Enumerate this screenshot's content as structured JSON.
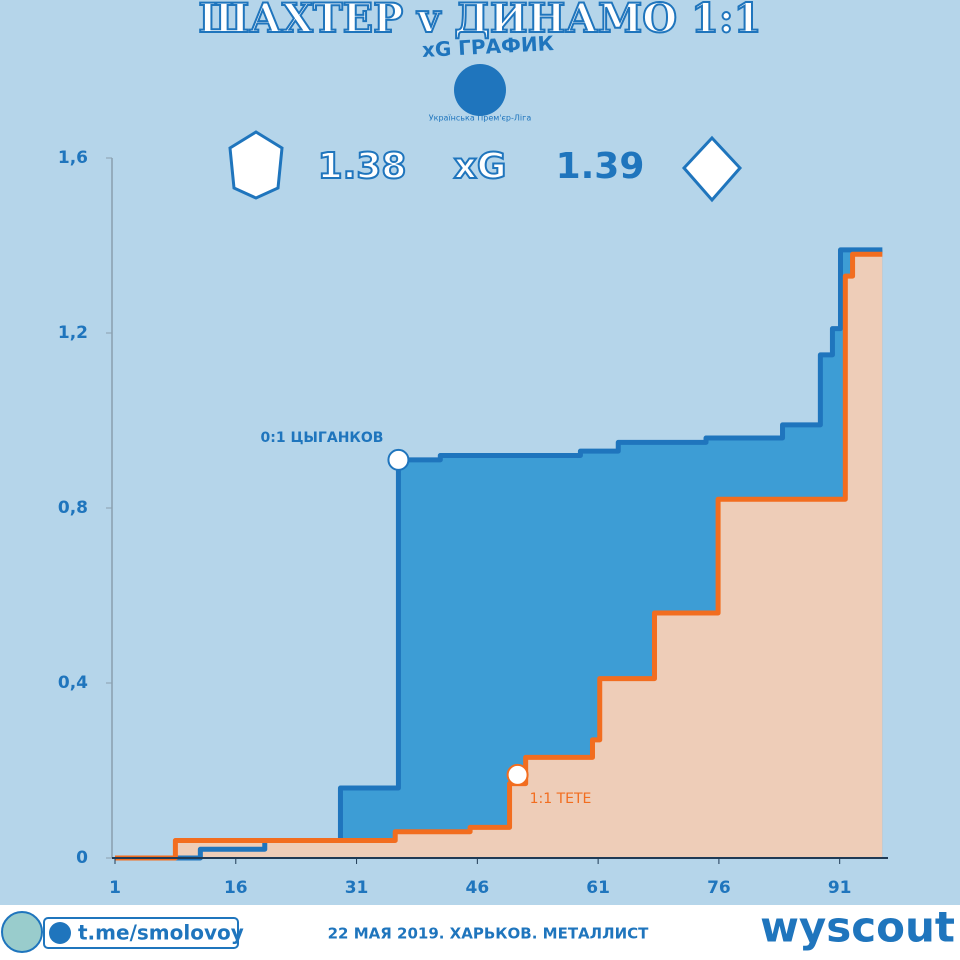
{
  "header": {
    "title": "ШАХТЕР v ДИНАМО 1:1",
    "subtitle": "xG ГРАФИК",
    "league": "Українська Прем'єр-Ліга",
    "home_xg": "1.38",
    "metric": "xG",
    "away_xg": "1.39"
  },
  "chart_data": {
    "type": "step",
    "xlim": [
      1,
      97
    ],
    "xticks": [
      1,
      16,
      31,
      46,
      61,
      76,
      91
    ],
    "ylim": [
      0,
      1.6
    ],
    "yticks": [
      0,
      {
        "value": 0.4,
        "label": "0,4"
      },
      {
        "value": 0.8,
        "label": "0,8"
      },
      {
        "value": 1.2,
        "label": "1,2"
      },
      {
        "value": 1.6,
        "label": "1,6"
      }
    ],
    "series": [
      {
        "name": "Динамо",
        "color": "#1f75bd",
        "fill": "#3d9dd5",
        "x": [
          1,
          11.6,
          19.6,
          29,
          36.2,
          41.4,
          58.8,
          63.5,
          74.4,
          83.9,
          88.6,
          90.1,
          91.1,
          96.3
        ],
        "values": [
          0,
          0.02,
          0.04,
          0.16,
          0.91,
          0.92,
          0.93,
          0.95,
          0.96,
          0.99,
          1.15,
          1.21,
          1.39,
          1.39
        ]
      },
      {
        "name": "Шахтер",
        "color": "#f26d1f",
        "fill": "#eecdb8",
        "x": [
          1,
          8.5,
          35.8,
          45.1,
          50,
          52,
          60.3,
          61.2,
          68,
          75.9,
          91.7,
          92.6,
          96.3
        ],
        "values": [
          0,
          0.04,
          0.06,
          0.07,
          0.17,
          0.23,
          0.27,
          0.41,
          0.56,
          0.82,
          1.33,
          1.38,
          1.38
        ]
      }
    ],
    "annotations": [
      {
        "text": "0:1 ЦЫГАНКОВ",
        "x": 36.2,
        "y": 0.91,
        "color": "#1f75bd"
      },
      {
        "text": "1:1 ТЕТЕ",
        "x": 51,
        "y": 0.19,
        "color": "#f26d1f"
      }
    ]
  },
  "footer": {
    "channel": "t.me/smolovoy",
    "match_info": "22 МАЯ 2019. ХАРЬКОВ. МЕТАЛЛИСТ",
    "brand": "wyscout"
  }
}
